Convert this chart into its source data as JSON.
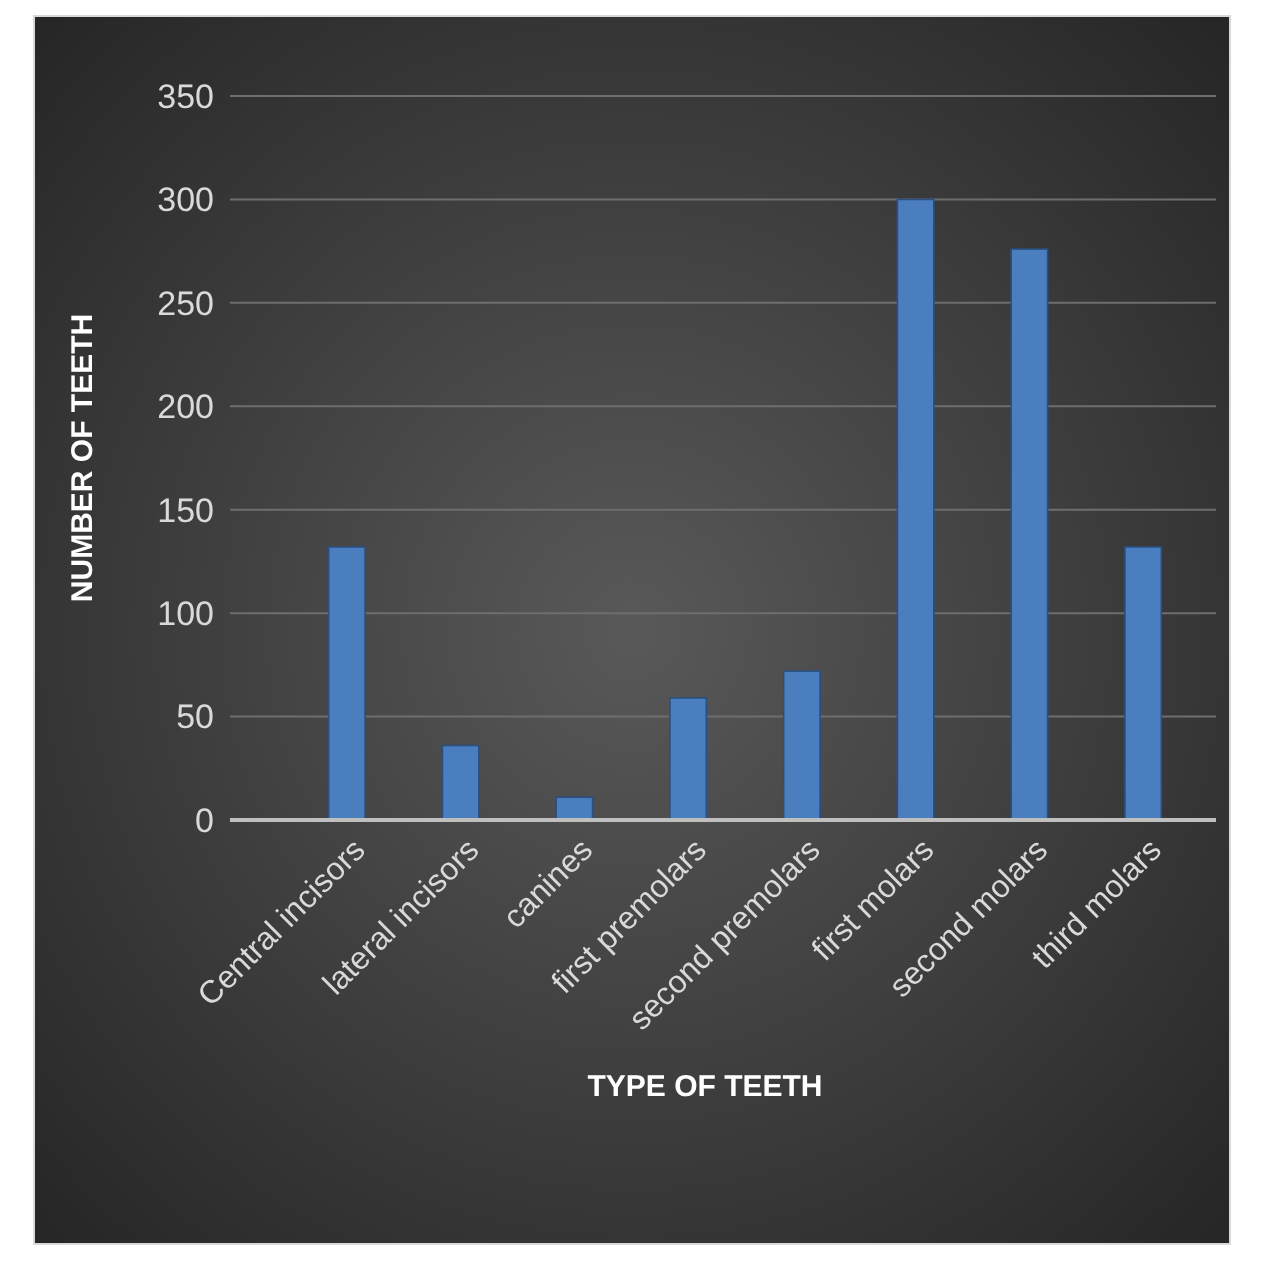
{
  "chart_data": {
    "type": "bar",
    "xlabel": "TYPE OF TEETH",
    "ylabel": "NUMBER OF TEETH",
    "categories": [
      "Central incisors",
      "lateral incisors",
      "canines",
      "first premolars",
      "second premolars",
      "first molars",
      "second molars",
      "third molars"
    ],
    "values": [
      132,
      36,
      11,
      59,
      72,
      300,
      276,
      132
    ],
    "color": "#4a7ebf",
    "ylim": [
      0,
      350
    ],
    "yticks": [
      0,
      50,
      100,
      150,
      200,
      250,
      300,
      350
    ],
    "grid": "y"
  }
}
